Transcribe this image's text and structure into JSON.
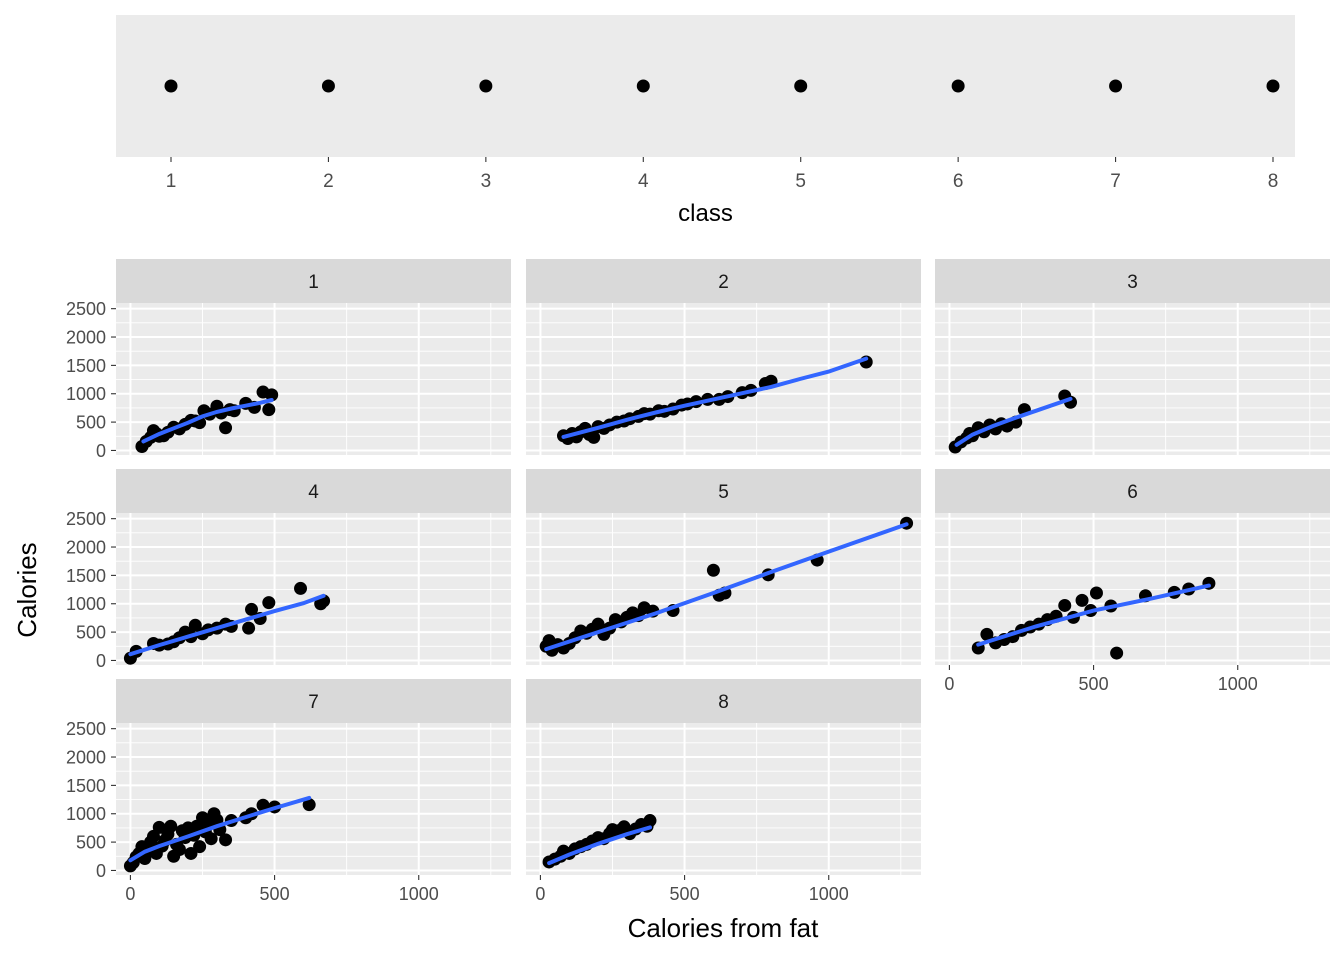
{
  "colors": {
    "panel_bg": "#EBEBEB",
    "grid": "#FFFFFF",
    "strip_bg": "#D9D9D9",
    "point": "#000000",
    "smooth": "#3366FF",
    "tick_text": "#4D4D4D",
    "title_text": "#000000"
  },
  "chart_data": [
    {
      "type": "scatter",
      "role": "legend-strip",
      "xlabel": "class",
      "x": [
        1,
        2,
        3,
        4,
        5,
        6,
        7,
        8
      ],
      "x_ticks": [
        "1",
        "2",
        "3",
        "4",
        "5",
        "6",
        "7",
        "8"
      ],
      "grid": false
    },
    {
      "type": "scatter",
      "role": "faceted-scatter-with-smooth",
      "xlabel": "Calories from fat",
      "ylabel": "Calories",
      "xlim": [
        -50,
        1320
      ],
      "ylim": [
        -80,
        2600
      ],
      "x_ticks": [
        0,
        500,
        1000
      ],
      "y_ticks": [
        0,
        500,
        1000,
        1500,
        2000,
        2500
      ],
      "grid": true,
      "facets": [
        {
          "label": "1",
          "points": [
            [
              40,
              70
            ],
            [
              55,
              160
            ],
            [
              70,
              230
            ],
            [
              80,
              350
            ],
            [
              90,
              300
            ],
            [
              100,
              250
            ],
            [
              115,
              260
            ],
            [
              130,
              320
            ],
            [
              150,
              410
            ],
            [
              170,
              380
            ],
            [
              190,
              460
            ],
            [
              210,
              530
            ],
            [
              225,
              520
            ],
            [
              240,
              490
            ],
            [
              255,
              700
            ],
            [
              275,
              640
            ],
            [
              300,
              780
            ],
            [
              315,
              660
            ],
            [
              330,
              400
            ],
            [
              345,
              720
            ],
            [
              360,
              700
            ],
            [
              400,
              830
            ],
            [
              430,
              760
            ],
            [
              460,
              1030
            ],
            [
              480,
              720
            ],
            [
              490,
              980
            ]
          ],
          "smooth": [
            [
              45,
              160
            ],
            [
              100,
              290
            ],
            [
              150,
              390
            ],
            [
              200,
              490
            ],
            [
              250,
              600
            ],
            [
              300,
              680
            ],
            [
              350,
              740
            ],
            [
              400,
              790
            ],
            [
              450,
              840
            ],
            [
              490,
              890
            ]
          ]
        },
        {
          "label": "2",
          "points": [
            [
              80,
              260
            ],
            [
              95,
              210
            ],
            [
              110,
              300
            ],
            [
              125,
              240
            ],
            [
              140,
              330
            ],
            [
              155,
              390
            ],
            [
              170,
              280
            ],
            [
              185,
              230
            ],
            [
              200,
              420
            ],
            [
              220,
              390
            ],
            [
              240,
              450
            ],
            [
              265,
              500
            ],
            [
              290,
              520
            ],
            [
              310,
              560
            ],
            [
              340,
              600
            ],
            [
              360,
              650
            ],
            [
              380,
              640
            ],
            [
              410,
              700
            ],
            [
              430,
              690
            ],
            [
              460,
              730
            ],
            [
              490,
              800
            ],
            [
              510,
              820
            ],
            [
              540,
              860
            ],
            [
              580,
              900
            ],
            [
              620,
              900
            ],
            [
              650,
              950
            ],
            [
              700,
              1020
            ],
            [
              730,
              1060
            ],
            [
              780,
              1180
            ],
            [
              800,
              1220
            ],
            [
              1130,
              1560
            ]
          ],
          "smooth": [
            [
              80,
              240
            ],
            [
              200,
              400
            ],
            [
              300,
              540
            ],
            [
              400,
              670
            ],
            [
              500,
              790
            ],
            [
              600,
              900
            ],
            [
              700,
              1010
            ],
            [
              800,
              1120
            ],
            [
              900,
              1260
            ],
            [
              1000,
              1390
            ],
            [
              1130,
              1620
            ]
          ]
        },
        {
          "label": "3",
          "points": [
            [
              20,
              60
            ],
            [
              40,
              150
            ],
            [
              60,
              220
            ],
            [
              70,
              300
            ],
            [
              80,
              260
            ],
            [
              100,
              400
            ],
            [
              120,
              330
            ],
            [
              140,
              450
            ],
            [
              160,
              380
            ],
            [
              180,
              470
            ],
            [
              200,
              430
            ],
            [
              230,
              500
            ],
            [
              260,
              720
            ],
            [
              400,
              960
            ],
            [
              420,
              850
            ]
          ],
          "smooth": [
            [
              25,
              100
            ],
            [
              80,
              280
            ],
            [
              150,
              430
            ],
            [
              220,
              560
            ],
            [
              300,
              700
            ],
            [
              420,
              910
            ]
          ]
        },
        {
          "label": "4",
          "points": [
            [
              0,
              40
            ],
            [
              20,
              160
            ],
            [
              80,
              300
            ],
            [
              100,
              270
            ],
            [
              130,
              290
            ],
            [
              150,
              330
            ],
            [
              170,
              400
            ],
            [
              190,
              500
            ],
            [
              210,
              420
            ],
            [
              225,
              620
            ],
            [
              250,
              470
            ],
            [
              270,
              540
            ],
            [
              300,
              570
            ],
            [
              330,
              640
            ],
            [
              350,
              600
            ],
            [
              410,
              570
            ],
            [
              420,
              900
            ],
            [
              450,
              740
            ],
            [
              480,
              1020
            ],
            [
              590,
              1270
            ],
            [
              660,
              1000
            ],
            [
              670,
              1050
            ]
          ],
          "smooth": [
            [
              0,
              110
            ],
            [
              100,
              270
            ],
            [
              200,
              420
            ],
            [
              300,
              570
            ],
            [
              400,
              720
            ],
            [
              500,
              870
            ],
            [
              600,
              1010
            ],
            [
              670,
              1140
            ]
          ]
        },
        {
          "label": "5",
          "points": [
            [
              20,
              250
            ],
            [
              30,
              350
            ],
            [
              40,
              180
            ],
            [
              60,
              280
            ],
            [
              80,
              220
            ],
            [
              100,
              300
            ],
            [
              120,
              400
            ],
            [
              140,
              520
            ],
            [
              160,
              480
            ],
            [
              180,
              550
            ],
            [
              200,
              640
            ],
            [
              220,
              460
            ],
            [
              240,
              570
            ],
            [
              260,
              720
            ],
            [
              280,
              680
            ],
            [
              300,
              760
            ],
            [
              320,
              840
            ],
            [
              340,
              790
            ],
            [
              360,
              930
            ],
            [
              390,
              870
            ],
            [
              460,
              880
            ],
            [
              600,
              1590
            ],
            [
              620,
              1150
            ],
            [
              640,
              1190
            ],
            [
              790,
              1510
            ],
            [
              960,
              1770
            ],
            [
              1270,
              2420
            ]
          ],
          "smooth": [
            [
              20,
              200
            ],
            [
              200,
              500
            ],
            [
              400,
              830
            ],
            [
              600,
              1190
            ],
            [
              800,
              1560
            ],
            [
              1000,
              1920
            ],
            [
              1270,
              2400
            ]
          ]
        },
        {
          "label": "6",
          "points": [
            [
              100,
              220
            ],
            [
              130,
              460
            ],
            [
              160,
              310
            ],
            [
              190,
              370
            ],
            [
              220,
              420
            ],
            [
              250,
              530
            ],
            [
              280,
              590
            ],
            [
              310,
              640
            ],
            [
              340,
              720
            ],
            [
              370,
              780
            ],
            [
              400,
              970
            ],
            [
              430,
              760
            ],
            [
              460,
              1060
            ],
            [
              490,
              880
            ],
            [
              510,
              1190
            ],
            [
              560,
              960
            ],
            [
              580,
              130
            ],
            [
              680,
              1140
            ],
            [
              780,
              1200
            ],
            [
              830,
              1260
            ],
            [
              900,
              1360
            ]
          ],
          "smooth": [
            [
              100,
              280
            ],
            [
              300,
              600
            ],
            [
              500,
              880
            ],
            [
              700,
              1090
            ],
            [
              900,
              1320
            ]
          ]
        },
        {
          "label": "7",
          "points": [
            [
              0,
              80
            ],
            [
              10,
              140
            ],
            [
              20,
              240
            ],
            [
              30,
              300
            ],
            [
              40,
              420
            ],
            [
              50,
              210
            ],
            [
              60,
              360
            ],
            [
              70,
              500
            ],
            [
              80,
              600
            ],
            [
              90,
              300
            ],
            [
              100,
              760
            ],
            [
              110,
              430
            ],
            [
              120,
              530
            ],
            [
              130,
              640
            ],
            [
              140,
              780
            ],
            [
              150,
              250
            ],
            [
              160,
              460
            ],
            [
              170,
              370
            ],
            [
              180,
              700
            ],
            [
              190,
              580
            ],
            [
              200,
              750
            ],
            [
              210,
              300
            ],
            [
              220,
              620
            ],
            [
              230,
              780
            ],
            [
              240,
              420
            ],
            [
              250,
              930
            ],
            [
              260,
              680
            ],
            [
              270,
              820
            ],
            [
              280,
              560
            ],
            [
              290,
              1000
            ],
            [
              300,
              890
            ],
            [
              310,
              720
            ],
            [
              330,
              540
            ],
            [
              350,
              880
            ],
            [
              400,
              930
            ],
            [
              420,
              1000
            ],
            [
              460,
              1150
            ],
            [
              500,
              1120
            ],
            [
              620,
              1160
            ]
          ],
          "smooth": [
            [
              0,
              180
            ],
            [
              50,
              330
            ],
            [
              100,
              430
            ],
            [
              200,
              600
            ],
            [
              300,
              780
            ],
            [
              400,
              940
            ],
            [
              500,
              1100
            ],
            [
              620,
              1280
            ]
          ]
        },
        {
          "label": "8",
          "points": [
            [
              30,
              150
            ],
            [
              50,
              200
            ],
            [
              70,
              250
            ],
            [
              80,
              340
            ],
            [
              100,
              300
            ],
            [
              120,
              380
            ],
            [
              140,
              420
            ],
            [
              160,
              460
            ],
            [
              180,
              520
            ],
            [
              200,
              580
            ],
            [
              220,
              560
            ],
            [
              240,
              650
            ],
            [
              250,
              720
            ],
            [
              270,
              700
            ],
            [
              290,
              770
            ],
            [
              310,
              650
            ],
            [
              330,
              730
            ],
            [
              350,
              810
            ],
            [
              370,
              780
            ],
            [
              380,
              880
            ]
          ],
          "smooth": [
            [
              30,
              130
            ],
            [
              100,
              280
            ],
            [
              200,
              470
            ],
            [
              300,
              640
            ],
            [
              380,
              760
            ]
          ]
        }
      ]
    }
  ]
}
